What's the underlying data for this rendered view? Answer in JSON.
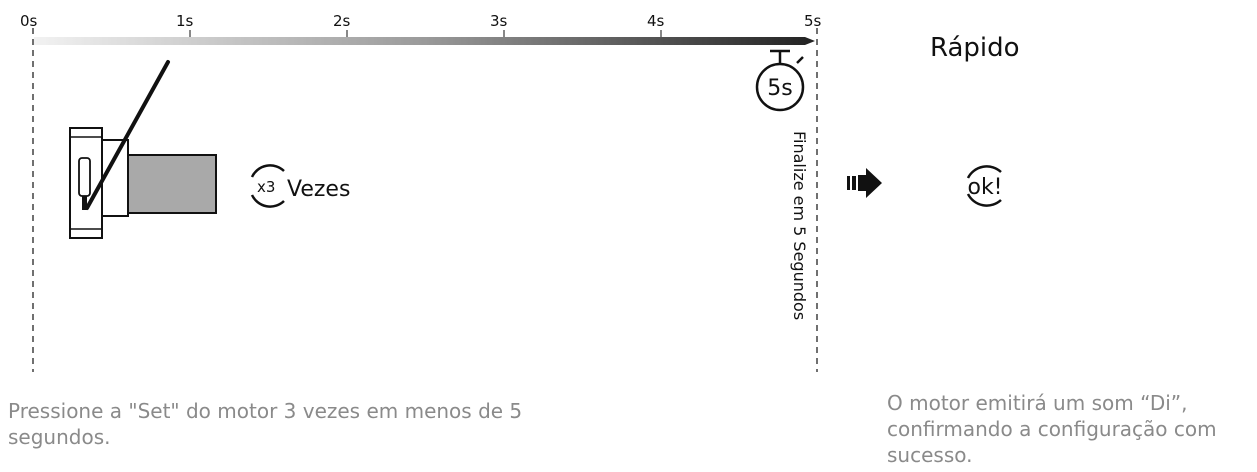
{
  "timeline": {
    "ticks": [
      "0s",
      "1s",
      "2s",
      "3s",
      "4s",
      "5s"
    ]
  },
  "mode_title": "Rápido",
  "timer_label": "5s",
  "press_multiplier": "x3",
  "press_label": "Vezes",
  "finish_label": "Finalize em 5 Segundos",
  "ok_label": "ok!",
  "captions": {
    "left": "Pressione a \"Set\" do motor 3 vezes em menos de 5 segundos.",
    "right": "O motor emitirá um som “Di”, confirmando a configuração com sucesso."
  }
}
